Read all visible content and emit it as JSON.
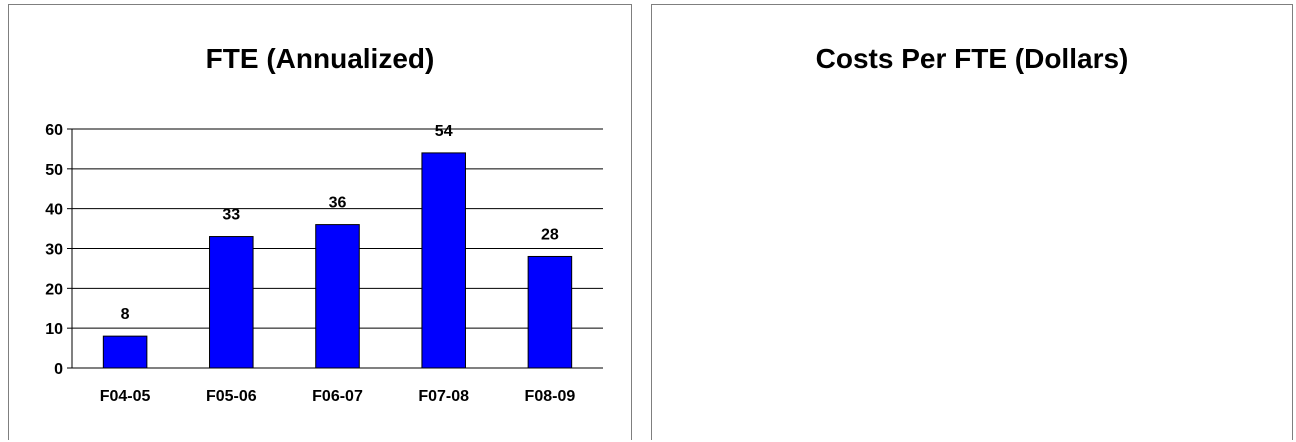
{
  "charts": [
    {
      "title": "FTE (Annualized)",
      "chart_data": {
        "type": "bar",
        "title": "FTE (Annualized)",
        "categories": [
          "F04-05",
          "F05-06",
          "F06-07",
          "F07-08",
          "F08-09"
        ],
        "values": [
          8,
          33,
          36,
          54,
          28
        ],
        "data_labels": [
          "8",
          "33",
          "36",
          "54",
          "28"
        ],
        "yticks": [
          "0",
          "10",
          "20",
          "30",
          "40",
          "50",
          "60"
        ],
        "ylim": [
          0,
          60
        ],
        "xlabel": "",
        "ylabel": "",
        "grid": true,
        "legend": "none",
        "bar_color": "#0000ff",
        "bar_border": "#000000"
      }
    },
    {
      "title": "Costs Per FTE (Dollars)",
      "chart_data": {
        "type": "bar",
        "title": "Costs Per FTE (Dollars)",
        "categories": [],
        "values": []
      }
    }
  ]
}
